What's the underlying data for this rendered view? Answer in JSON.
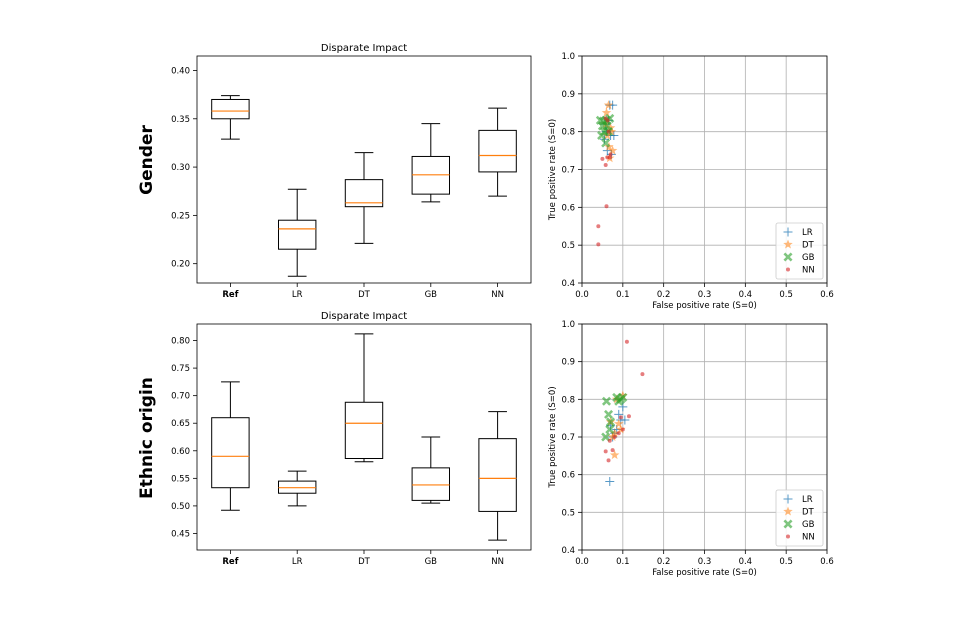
{
  "rows": [
    {
      "label": "Gender"
    },
    {
      "label": "Ethnic origin"
    }
  ],
  "chart_data": [
    {
      "type": "box",
      "title": "Disparate Impact",
      "row_label": "Gender",
      "categories": [
        "Ref",
        "LR",
        "DT",
        "GB",
        "NN"
      ],
      "bold_categories": [
        "Ref"
      ],
      "ylim": [
        0.18,
        0.415
      ],
      "yticks": [
        "0.20",
        "0.25",
        "0.30",
        "0.35",
        "0.40"
      ],
      "boxes": [
        {
          "whislo": 0.329,
          "q1": 0.35,
          "med": 0.358,
          "q3": 0.37,
          "whishi": 0.374
        },
        {
          "whislo": 0.187,
          "q1": 0.215,
          "med": 0.236,
          "q3": 0.245,
          "whishi": 0.277
        },
        {
          "whislo": 0.221,
          "q1": 0.259,
          "med": 0.263,
          "q3": 0.287,
          "whishi": 0.315
        },
        {
          "whislo": 0.264,
          "q1": 0.272,
          "med": 0.292,
          "q3": 0.311,
          "whishi": 0.345
        },
        {
          "whislo": 0.27,
          "q1": 0.295,
          "med": 0.312,
          "q3": 0.338,
          "whishi": 0.361
        }
      ],
      "colors": {
        "median": "#ff7f0e",
        "box": "#000000"
      }
    },
    {
      "type": "scatter",
      "row_label": "Gender",
      "xlabel": "False positive rate (S=0)",
      "ylabel": "True positive rate (S=0)",
      "xlim": [
        0.0,
        0.6
      ],
      "ylim": [
        0.4,
        1.0
      ],
      "xticks": [
        "0.0",
        "0.1",
        "0.2",
        "0.3",
        "0.4",
        "0.5",
        "0.6"
      ],
      "yticks": [
        "0.4",
        "0.5",
        "0.6",
        "0.7",
        "0.8",
        "0.9",
        "1.0"
      ],
      "grid": true,
      "legend_position": "lower-right",
      "series": [
        {
          "name": "LR",
          "marker": "plus",
          "color": "#1f77b4",
          "points": [
            [
              0.068,
              0.87
            ],
            [
              0.075,
              0.87
            ],
            [
              0.06,
              0.8
            ],
            [
              0.07,
              0.79
            ],
            [
              0.065,
              0.83
            ],
            [
              0.055,
              0.78
            ],
            [
              0.078,
              0.79
            ],
            [
              0.062,
              0.75
            ],
            [
              0.072,
              0.74
            ],
            [
              0.058,
              0.82
            ]
          ]
        },
        {
          "name": "DT",
          "marker": "star",
          "color": "#ff7f0e",
          "points": [
            [
              0.065,
              0.87
            ],
            [
              0.06,
              0.85
            ],
            [
              0.07,
              0.81
            ],
            [
              0.075,
              0.75
            ],
            [
              0.068,
              0.73
            ],
            [
              0.062,
              0.79
            ],
            [
              0.058,
              0.82
            ],
            [
              0.072,
              0.8
            ],
            [
              0.066,
              0.76
            ]
          ]
        },
        {
          "name": "GB",
          "marker": "x",
          "color": "#2ca02c",
          "points": [
            [
              0.045,
              0.83
            ],
            [
              0.052,
              0.828
            ],
            [
              0.06,
              0.83
            ],
            [
              0.048,
              0.79
            ],
            [
              0.055,
              0.8
            ],
            [
              0.065,
              0.8
            ],
            [
              0.058,
              0.77
            ],
            [
              0.05,
              0.815
            ],
            [
              0.062,
              0.815
            ],
            [
              0.068,
              0.835
            ]
          ]
        },
        {
          "name": "NN",
          "marker": "dot",
          "color": "#d62728",
          "points": [
            [
              0.04,
              0.55
            ],
            [
              0.04,
              0.502
            ],
            [
              0.06,
              0.603
            ],
            [
              0.058,
              0.712
            ],
            [
              0.05,
              0.728
            ],
            [
              0.068,
              0.732
            ],
            [
              0.062,
              0.732
            ],
            [
              0.07,
              0.74
            ],
            [
              0.065,
              0.8
            ],
            [
              0.058,
              0.835
            ],
            [
              0.063,
              0.83
            ]
          ]
        }
      ]
    },
    {
      "type": "box",
      "title": "Disparate Impact",
      "row_label": "Ethnic origin",
      "categories": [
        "Ref",
        "LR",
        "DT",
        "GB",
        "NN"
      ],
      "bold_categories": [
        "Ref"
      ],
      "ylim": [
        0.42,
        0.83
      ],
      "yticks": [
        "0.45",
        "0.50",
        "0.55",
        "0.60",
        "0.65",
        "0.70",
        "0.75",
        "0.80"
      ],
      "boxes": [
        {
          "whislo": 0.492,
          "q1": 0.533,
          "med": 0.59,
          "q3": 0.66,
          "whishi": 0.725
        },
        {
          "whislo": 0.5,
          "q1": 0.523,
          "med": 0.533,
          "q3": 0.545,
          "whishi": 0.563
        },
        {
          "whislo": 0.58,
          "q1": 0.586,
          "med": 0.65,
          "q3": 0.688,
          "whishi": 0.812
        },
        {
          "whislo": 0.505,
          "q1": 0.51,
          "med": 0.538,
          "q3": 0.569,
          "whishi": 0.625
        },
        {
          "whislo": 0.438,
          "q1": 0.49,
          "med": 0.55,
          "q3": 0.622,
          "whishi": 0.671
        }
      ],
      "colors": {
        "median": "#ff7f0e",
        "box": "#000000"
      }
    },
    {
      "type": "scatter",
      "row_label": "Ethnic origin",
      "xlabel": "False positive rate (S=0)",
      "ylabel": "True positive rate (S=0)",
      "xlim": [
        0.0,
        0.6
      ],
      "ylim": [
        0.4,
        1.0
      ],
      "xticks": [
        "0.0",
        "0.1",
        "0.2",
        "0.3",
        "0.4",
        "0.5",
        "0.6"
      ],
      "yticks": [
        "0.4",
        "0.5",
        "0.6",
        "0.7",
        "0.8",
        "0.9",
        "1.0"
      ],
      "grid": true,
      "legend_position": "lower-right",
      "series": [
        {
          "name": "LR",
          "marker": "plus",
          "color": "#1f77b4",
          "points": [
            [
              0.068,
              0.582
            ],
            [
              0.105,
              0.745
            ],
            [
              0.095,
              0.745
            ],
            [
              0.08,
              0.71
            ],
            [
              0.075,
              0.7
            ],
            [
              0.085,
              0.72
            ],
            [
              0.07,
              0.73
            ],
            [
              0.1,
              0.78
            ],
            [
              0.09,
              0.76
            ]
          ]
        },
        {
          "name": "DT",
          "marker": "star",
          "color": "#ff7f0e",
          "points": [
            [
              0.08,
              0.652
            ],
            [
              0.095,
              0.72
            ],
            [
              0.09,
              0.735
            ],
            [
              0.07,
              0.74
            ],
            [
              0.085,
              0.8
            ],
            [
              0.1,
              0.81
            ],
            [
              0.075,
              0.7
            ],
            [
              0.08,
              0.71
            ]
          ]
        },
        {
          "name": "GB",
          "marker": "x",
          "color": "#2ca02c",
          "points": [
            [
              0.06,
              0.795
            ],
            [
              0.065,
              0.76
            ],
            [
              0.07,
              0.74
            ],
            [
              0.058,
              0.7
            ],
            [
              0.068,
              0.72
            ],
            [
              0.085,
              0.805
            ],
            [
              0.095,
              0.8
            ],
            [
              0.1,
              0.805
            ],
            [
              0.09,
              0.795
            ]
          ]
        },
        {
          "name": "NN",
          "marker": "dot",
          "color": "#d62728",
          "points": [
            [
              0.11,
              0.953
            ],
            [
              0.148,
              0.867
            ],
            [
              0.058,
              0.662
            ],
            [
              0.065,
              0.638
            ],
            [
              0.075,
              0.665
            ],
            [
              0.095,
              0.752
            ],
            [
              0.115,
              0.755
            ],
            [
              0.08,
              0.7
            ],
            [
              0.068,
              0.69
            ],
            [
              0.09,
              0.71
            ],
            [
              0.1,
              0.72
            ]
          ]
        }
      ]
    }
  ]
}
